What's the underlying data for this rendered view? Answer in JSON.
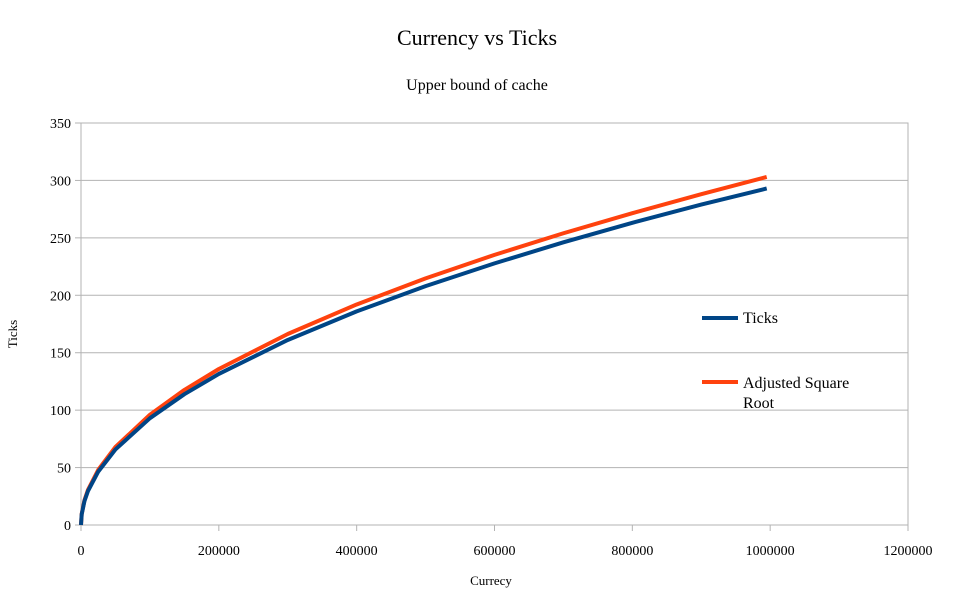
{
  "chart_data": {
    "type": "line",
    "title": "Currency vs Ticks",
    "subtitle": "Upper bound of cache",
    "xlabel": "Currecy",
    "ylabel": "Ticks",
    "xlim": [
      0,
      1200000
    ],
    "ylim": [
      0,
      350
    ],
    "xticks": [
      0,
      200000,
      400000,
      600000,
      800000,
      1000000,
      1200000
    ],
    "xtick_labels": [
      "0",
      "200000",
      "400000",
      "600000",
      "800000",
      "1000000",
      "1200000"
    ],
    "yticks": [
      0,
      50,
      100,
      150,
      200,
      250,
      300,
      350
    ],
    "ytick_labels": [
      "0",
      "50",
      "100",
      "150",
      "200",
      "250",
      "300",
      "350"
    ],
    "grid": "horizontal",
    "legend_position": "right",
    "series": [
      {
        "name": "Ticks",
        "color": "#004586",
        "x": [
          0,
          1000,
          5000,
          10000,
          25000,
          50000,
          100000,
          150000,
          200000,
          300000,
          400000,
          500000,
          600000,
          700000,
          800000,
          900000,
          995000
        ],
        "y": [
          0,
          9.3,
          20.8,
          29.4,
          46.5,
          65.8,
          93,
          113.9,
          131.5,
          161.1,
          186,
          208,
          227.8,
          246.1,
          263.1,
          279,
          293
        ]
      },
      {
        "name": "Adjusted Square Root",
        "color": "#ff420e",
        "x": [
          0,
          1000,
          5000,
          10000,
          25000,
          50000,
          100000,
          150000,
          200000,
          300000,
          400000,
          500000,
          600000,
          700000,
          800000,
          900000,
          995000
        ],
        "y": [
          0,
          9.6,
          21.5,
          30.4,
          48,
          67.9,
          96,
          117.6,
          135.8,
          166.3,
          192,
          214.7,
          235.2,
          254,
          271.5,
          288,
          303
        ]
      }
    ]
  }
}
